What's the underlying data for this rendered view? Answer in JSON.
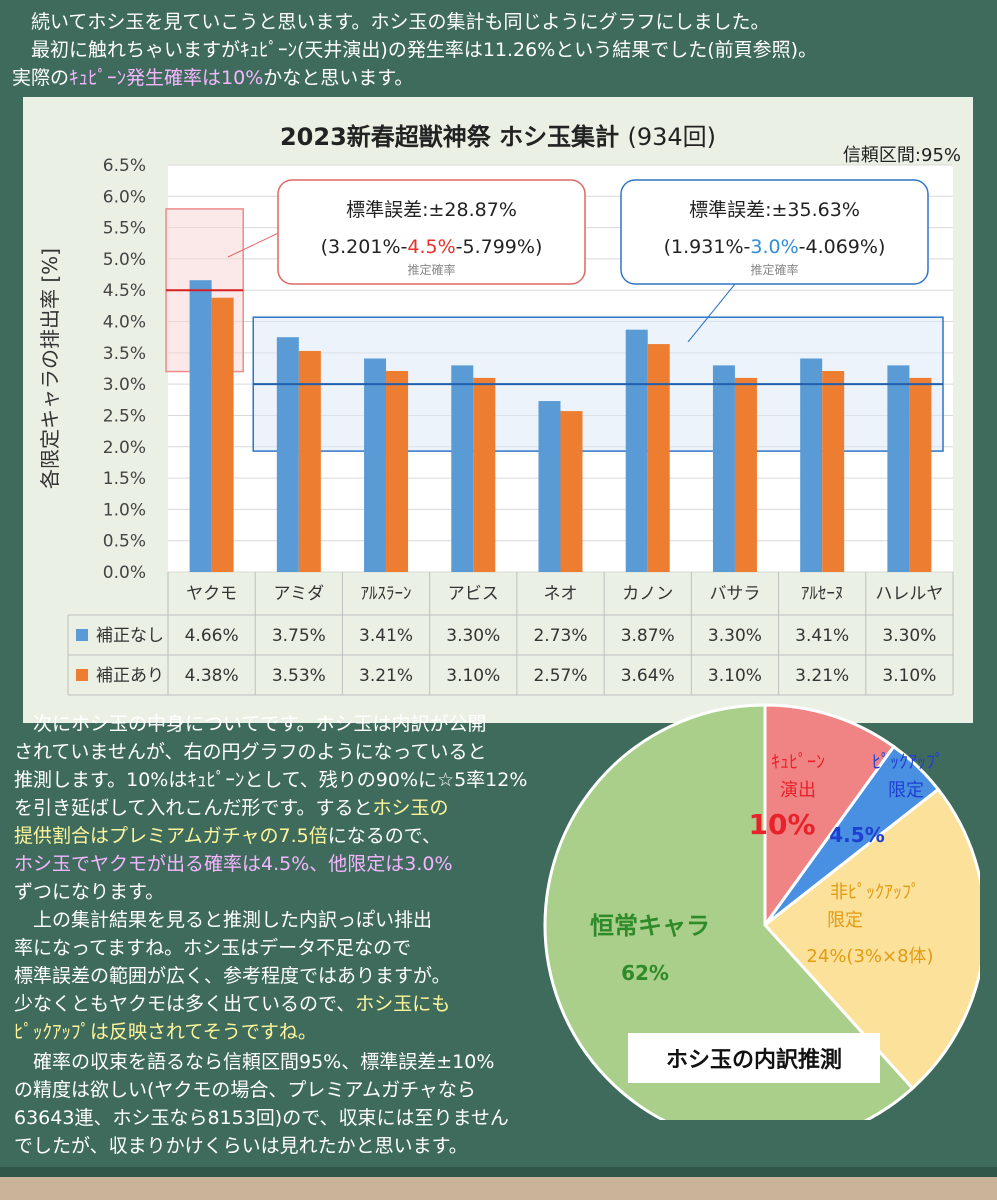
{
  "intro": {
    "line1": "　続いてホシ玉を見ていこうと思います。ホシ玉の集計も同じようにグラフにしました。",
    "line2": "　最初に触れちゃいますがｷｭﾋﾟｰﾝ(天井演出)の発生率は11.26%という結果でした(前頁参照)。",
    "line3_a": "実際の",
    "line3_hl": "ｷｭﾋﾟｰﾝ発生確率は10%",
    "line3_b": "かなと思います。"
  },
  "chart_data": {
    "type": "bar",
    "title": "2023新春超獣神祭 ホシ玉集計",
    "title_suffix": "(934回)",
    "confidence_label": "信頼区間:95%",
    "ylabel": "各限定キャラの排出率 [%]",
    "ylim": [
      0,
      6.5
    ],
    "yticks": [
      "0.0%",
      "0.5%",
      "1.0%",
      "1.5%",
      "2.0%",
      "2.5%",
      "3.0%",
      "3.5%",
      "4.0%",
      "4.5%",
      "5.0%",
      "5.5%",
      "6.0%",
      "6.5%"
    ],
    "grid": true,
    "categories": [
      "ヤクモ",
      "アミダ",
      "ｱﾙｽﾗｰﾝ",
      "アビス",
      "ネオ",
      "カノン",
      "バサラ",
      "ｱﾙｾｰﾇ",
      "ハレルヤ"
    ],
    "series": [
      {
        "name": "補正なし",
        "color": "#5b9bd5",
        "values": [
          4.66,
          3.75,
          3.41,
          3.3,
          2.73,
          3.87,
          3.3,
          3.41,
          3.3
        ],
        "labels": [
          "4.66%",
          "3.75%",
          "3.41%",
          "3.30%",
          "2.73%",
          "3.87%",
          "3.30%",
          "3.41%",
          "3.30%"
        ]
      },
      {
        "name": "補正あり",
        "color": "#ed7d31",
        "values": [
          4.38,
          3.53,
          3.21,
          3.1,
          2.57,
          3.64,
          3.1,
          3.21,
          3.1
        ],
        "labels": [
          "4.38%",
          "3.53%",
          "3.21%",
          "3.10%",
          "2.57%",
          "3.64%",
          "3.10%",
          "3.21%",
          "3.10%"
        ]
      }
    ],
    "annotations": [
      {
        "id": "red",
        "color": "#e06666",
        "stderr": "標準誤差:±28.87%",
        "range_pre": "(3.201%-",
        "range_mid": "4.5%",
        "range_post": "-5.799%)",
        "mid_color": "#e8302a",
        "note": "推定確率",
        "rate": 4.5,
        "band": [
          3.201,
          5.799
        ]
      },
      {
        "id": "blue",
        "color": "#2e75c6",
        "stderr": "標準誤差:±35.63%",
        "range_pre": "(1.931%-",
        "range_mid": "3.0%",
        "range_post": "-4.069%)",
        "mid_color": "#2e8fd8",
        "note": "推定確率",
        "rate": 3.0,
        "band": [
          1.931,
          4.069
        ]
      }
    ]
  },
  "lower_text": {
    "p1": [
      "　次にホシ玉の中身についてです。ホシ玉は内訳が公開",
      "されていませんが、右の円グラフのようになっていると",
      "推測します。10%はｷｭﾋﾟｰﾝとして、残りの90%に☆5率12%",
      "を引き延ばして入れこんだ形です。すると"
    ],
    "p1_hl_a": "ホシ玉の",
    "p1_hl_b": "提供割合はプレミアムガチャの7.5倍",
    "p1_c": "になるので、",
    "p1_hl_c": "ホシ玉でヤクモが出る確率は4.5%、他限定は3.0%",
    "p1_d": "ずつになります。",
    "p2": [
      "　上の集計結果を見ると推測した内訳っぽい排出",
      "率になってますね。ホシ玉はデータ不足なので",
      "標準誤差の範囲が広く、参考程度ではありますが。"
    ],
    "p2_e": "少なくともヤクモは多く出ているので、",
    "p2_hl_a": "ホシ玉にも",
    "p2_hl_b": "ﾋﾟｯｸｱｯﾌﾟは反映されてそうですね。",
    "p3": [
      "　確率の収束を語るなら信頼区間95%、標準誤差±10%",
      "の精度は欲しい(ヤクモの場合、プレミアムガチャなら",
      "63643連、ホシ玉なら8153回)ので、収束には至りません",
      "でしたが、収まりかけくらいは見れたかと思います。"
    ]
  },
  "pie": {
    "caption": "ホシ玉の内訳推測",
    "slices": [
      {
        "name": "ｷｭﾋﾟｰﾝ演出",
        "l1": "ｷｭﾋﾟｰﾝ",
        "l2": "演出",
        "value_label": "10%",
        "value": 10,
        "color": "#f08484",
        "text_color": "#e8222a"
      },
      {
        "name": "ﾋﾟｯｸｱｯﾌﾟ限定",
        "l1": "ﾋﾟｯｸｱｯﾌﾟ",
        "l2": "限定",
        "value_label": "4.5%",
        "value": 4.5,
        "color": "#4a90e2",
        "text_color": "#1f3fd1"
      },
      {
        "name": "非ﾋﾟｯｸｱｯﾌﾟ限定",
        "l1": "非ﾋﾟｯｸｱｯﾌﾟ",
        "l2": "限定",
        "value_label": "24%(3%×8体)",
        "value": 24,
        "color": "#fbe19a",
        "text_color": "#e39b12"
      },
      {
        "name": "恒常キャラ",
        "l1": "恒常キャラ",
        "l2": "",
        "value_label": "62%",
        "value": 62,
        "color": "#a9cf8a",
        "text_color": "#2f8a2a"
      }
    ]
  }
}
